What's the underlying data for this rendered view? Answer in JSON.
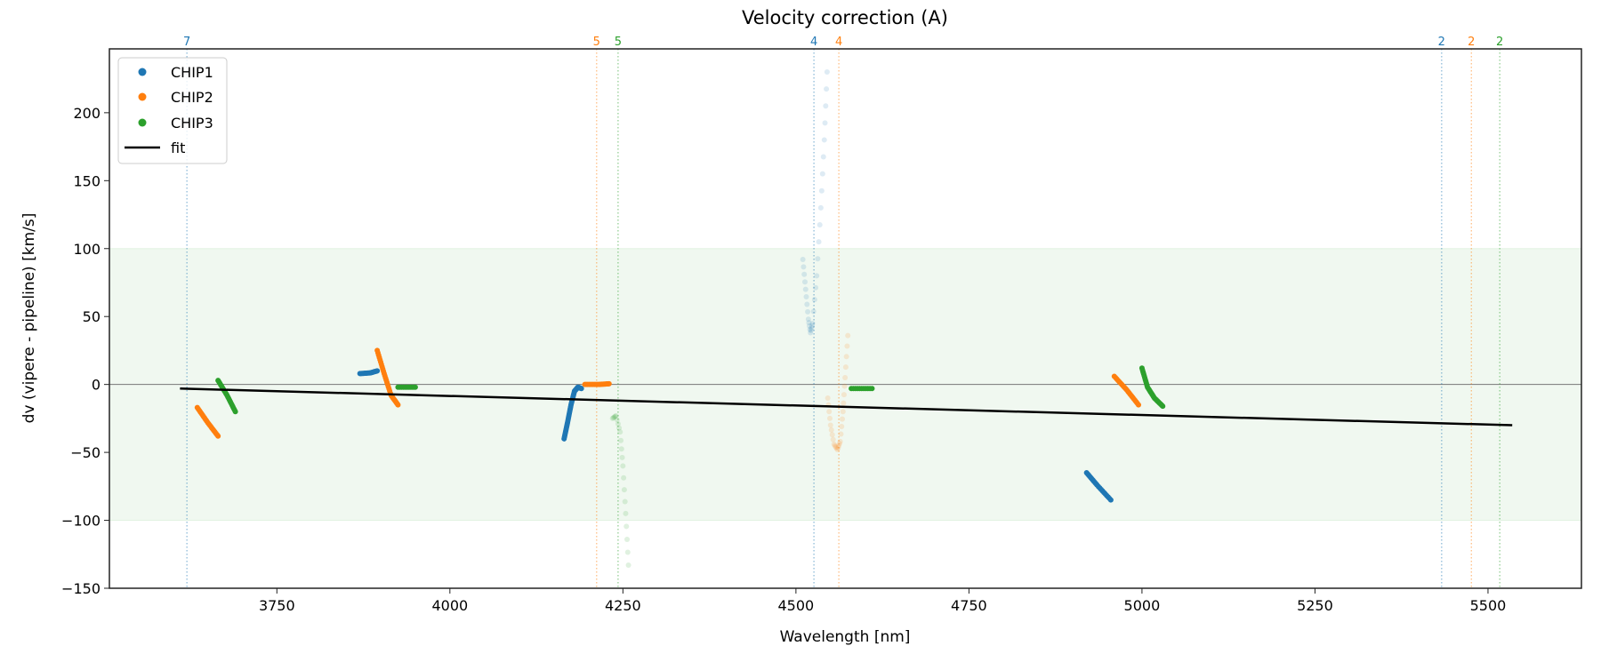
{
  "chart_data": {
    "type": "scatter",
    "title": "Velocity correction (A)",
    "xlabel": "Wavelength [nm]",
    "ylabel": "dv (vipere - pipeline) [km/s]",
    "xlim": [
      3508,
      5635
    ],
    "ylim": [
      -150,
      247
    ],
    "xticks": [
      3750,
      4000,
      4250,
      4500,
      4750,
      5000,
      5250,
      5500
    ],
    "yticks": [
      -150,
      -100,
      -50,
      0,
      50,
      100,
      150,
      200
    ],
    "grid": false,
    "legend": {
      "placement": "top-left",
      "entries": [
        "CHIP1",
        "CHIP2",
        "CHIP3",
        "fit"
      ]
    },
    "colors": {
      "CHIP1": "#1f77b4",
      "CHIP2": "#ff7f0e",
      "CHIP3": "#2ca02c",
      "fit": "#000000"
    },
    "band": {
      "from": -100,
      "to": 100,
      "color": "#2ca02c"
    },
    "zero_line": 0,
    "vlines": [
      {
        "x": 3620,
        "label": "7",
        "chip": "CHIP1"
      },
      {
        "x": 4212,
        "label": "5",
        "chip": "CHIP2"
      },
      {
        "x": 4243,
        "label": "5",
        "chip": "CHIP3"
      },
      {
        "x": 4526,
        "label": "4",
        "chip": "CHIP1"
      },
      {
        "x": 4562,
        "label": "4",
        "chip": "CHIP2"
      },
      {
        "x": 5433,
        "label": "2",
        "chip": "CHIP1"
      },
      {
        "x": 5476,
        "label": "2",
        "chip": "CHIP2"
      },
      {
        "x": 5517,
        "label": "2",
        "chip": "CHIP3"
      }
    ],
    "fit": {
      "x": [
        3610,
        5535
      ],
      "y": [
        -3,
        -30
      ]
    },
    "series": [
      {
        "name": "CHIP1",
        "segments": [
          {
            "alpha": 1,
            "points": [
              [
                3870,
                8
              ],
              [
                3885,
                8.5
              ],
              [
                3895,
                10
              ]
            ]
          },
          {
            "alpha": 1,
            "points": [
              [
                4165,
                -40
              ],
              [
                4170,
                -28
              ],
              [
                4175,
                -15
              ],
              [
                4180,
                -5
              ],
              [
                4185,
                -2
              ],
              [
                4190,
                -3
              ]
            ]
          },
          {
            "alpha": 0.15,
            "points": [
              [
                4510,
                92
              ],
              [
                4514,
                70
              ],
              [
                4518,
                48
              ],
              [
                4521,
                38
              ],
              [
                4524,
                45
              ],
              [
                4530,
                80
              ],
              [
                4536,
                130
              ],
              [
                4541,
                180
              ],
              [
                4545,
                230
              ]
            ]
          },
          {
            "alpha": 1,
            "points": [
              [
                4920,
                -65
              ],
              [
                4935,
                -74
              ],
              [
                4955,
                -85
              ]
            ]
          }
        ]
      },
      {
        "name": "CHIP2",
        "segments": [
          {
            "alpha": 1,
            "points": [
              [
                3635,
                -17
              ],
              [
                3650,
                -28
              ],
              [
                3665,
                -38
              ]
            ]
          },
          {
            "alpha": 1,
            "points": [
              [
                3895,
                25
              ],
              [
                3905,
                8
              ],
              [
                3915,
                -8
              ],
              [
                3925,
                -15
              ]
            ]
          },
          {
            "alpha": 1,
            "points": [
              [
                4195,
                0
              ],
              [
                4215,
                0
              ],
              [
                4230,
                0.5
              ]
            ]
          },
          {
            "alpha": 0.15,
            "points": [
              [
                4546,
                -10
              ],
              [
                4550,
                -30
              ],
              [
                4555,
                -44
              ],
              [
                4560,
                -48
              ],
              [
                4564,
                -42
              ],
              [
                4568,
                -20
              ],
              [
                4571,
                5
              ],
              [
                4575,
                36
              ]
            ]
          },
          {
            "alpha": 1,
            "points": [
              [
                4960,
                6
              ],
              [
                4978,
                -4
              ],
              [
                4995,
                -15
              ]
            ]
          }
        ]
      },
      {
        "name": "CHIP3",
        "segments": [
          {
            "alpha": 1,
            "points": [
              [
                3665,
                3
              ],
              [
                3678,
                -8
              ],
              [
                3690,
                -20
              ]
            ]
          },
          {
            "alpha": 1,
            "points": [
              [
                3925,
                -2
              ],
              [
                3950,
                -2
              ]
            ]
          },
          {
            "alpha": 0.15,
            "points": [
              [
                4235,
                -25
              ],
              [
                4240,
                -23
              ],
              [
                4246,
                -35
              ],
              [
                4250,
                -60
              ],
              [
                4254,
                -95
              ],
              [
                4258,
                -133
              ]
            ]
          },
          {
            "alpha": 1,
            "points": [
              [
                4580,
                -3
              ],
              [
                4610,
                -3
              ]
            ]
          },
          {
            "alpha": 1,
            "points": [
              [
                5000,
                12
              ],
              [
                5008,
                -2
              ],
              [
                5018,
                -10
              ],
              [
                5030,
                -16
              ]
            ]
          }
        ]
      }
    ]
  }
}
